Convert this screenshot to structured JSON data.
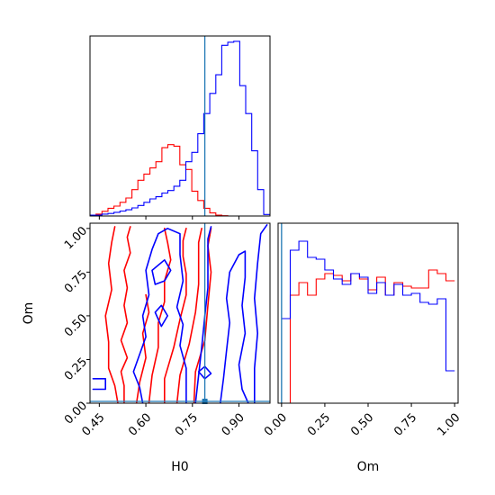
{
  "colors": {
    "series_a": "#ff0000",
    "series_b": "#0000ff",
    "truth": "#1f77b4"
  },
  "chart_data": {
    "type": "corner",
    "parameters": [
      "H0",
      "Om"
    ],
    "truth": {
      "H0": 0.79,
      "Om": 0.0
    },
    "panels": [
      {
        "id": "hist-H0",
        "type": "histogram",
        "param": "H0",
        "xlim": [
          0.42,
          1.0
        ],
        "series": [
          {
            "color": "#ff0000",
            "bin_start": 0.42,
            "bin_width": 0.0193,
            "values": [
              0,
              0.6,
              1.5,
              2.5,
              3.2,
              4.4,
              5.8,
              8.5,
              11.5,
              13.5,
              15.5,
              17.5,
              22.0,
              23.0,
              22.5,
              16.5,
              15.0,
              8.0,
              5.0,
              2.5,
              1.0,
              0.3,
              0.1,
              0,
              0,
              0,
              0,
              0,
              0,
              0
            ]
          },
          {
            "color": "#0000ff",
            "bin_start": 0.42,
            "bin_width": 0.0193,
            "values": [
              0.3,
              0.3,
              0.6,
              0.8,
              1.2,
              1.6,
              2.0,
              2.6,
              3.4,
              4.4,
              5.5,
              6.2,
              7.4,
              8.2,
              9.6,
              11.5,
              17.5,
              20.5,
              26.5,
              33.0,
              39.5,
              45.5,
              55.0,
              56.0,
              56.3,
              42.0,
              33.0,
              21.0,
              8.5,
              0.5
            ]
          }
        ]
      },
      {
        "id": "hist-Om",
        "type": "histogram",
        "param": "Om",
        "xlim": [
          -0.02,
          1.02
        ],
        "series": [
          {
            "color": "#ff0000",
            "bin_start": 0.0,
            "bin_width": 0.05,
            "values": [
              0,
              0.6,
              0.67,
              0.6,
              0.69,
              0.72,
              0.71,
              0.68,
              0.72,
              0.69,
              0.63,
              0.7,
              0.6,
              0.67,
              0.65,
              0.64,
              0.64,
              0.74,
              0.72,
              0.68
            ]
          },
          {
            "color": "#0000ff",
            "bin_start": 0.0,
            "bin_width": 0.05,
            "values": [
              0.47,
              0.85,
              0.9,
              0.81,
              0.8,
              0.74,
              0.69,
              0.66,
              0.72,
              0.7,
              0.61,
              0.67,
              0.6,
              0.66,
              0.6,
              0.61,
              0.56,
              0.55,
              0.58,
              0.18
            ]
          }
        ]
      },
      {
        "id": "contour-H0-Om",
        "type": "contour",
        "x": "H0",
        "y": "Om",
        "xlim": [
          0.42,
          1.0
        ],
        "ylim": [
          0.0,
          1.03
        ],
        "series": [
          {
            "color": "#ff0000",
            "contours": [
              [
                [
                  0.51,
                  0.0
                ],
                [
                  0.5,
                  0.1
                ],
                [
                  0.48,
                  0.2
                ],
                [
                  0.48,
                  0.35
                ],
                [
                  0.47,
                  0.5
                ],
                [
                  0.49,
                  0.65
                ],
                [
                  0.48,
                  0.8
                ],
                [
                  0.49,
                  0.92
                ],
                [
                  0.5,
                  1.01
                ]
              ],
              [
                [
                  0.53,
                  0.0
                ],
                [
                  0.53,
                  0.1
                ],
                [
                  0.52,
                  0.18
                ],
                [
                  0.54,
                  0.26
                ],
                [
                  0.52,
                  0.36
                ],
                [
                  0.54,
                  0.46
                ],
                [
                  0.53,
                  0.56
                ],
                [
                  0.54,
                  0.66
                ],
                [
                  0.53,
                  0.76
                ],
                [
                  0.55,
                  0.86
                ],
                [
                  0.54,
                  0.95
                ],
                [
                  0.55,
                  1.01
                ]
              ],
              [
                [
                  0.57,
                  0.0
                ],
                [
                  0.58,
                  0.12
                ],
                [
                  0.6,
                  0.26
                ],
                [
                  0.59,
                  0.4
                ],
                [
                  0.61,
                  0.52
                ],
                [
                  0.6,
                  0.62
                ]
              ],
              [
                [
                  0.61,
                  0.0
                ],
                [
                  0.62,
                  0.16
                ],
                [
                  0.64,
                  0.32
                ],
                [
                  0.64,
                  0.46
                ],
                [
                  0.66,
                  0.58
                ],
                [
                  0.66,
                  0.7
                ],
                [
                  0.68,
                  0.82
                ],
                [
                  0.67,
                  0.92
                ],
                [
                  0.66,
                  1.0
                ]
              ],
              [
                [
                  0.66,
                  0.0
                ],
                [
                  0.66,
                  0.14
                ],
                [
                  0.69,
                  0.32
                ],
                [
                  0.71,
                  0.48
                ],
                [
                  0.73,
                  0.62
                ],
                [
                  0.73,
                  0.74
                ],
                [
                  0.72,
                  0.84
                ],
                [
                  0.72,
                  0.93
                ],
                [
                  0.73,
                  1.0
                ]
              ],
              [
                [
                  0.7,
                  0.0
                ],
                [
                  0.71,
                  0.16
                ],
                [
                  0.74,
                  0.34
                ],
                [
                  0.76,
                  0.52
                ],
                [
                  0.77,
                  0.68
                ],
                [
                  0.77,
                  0.82
                ],
                [
                  0.77,
                  0.92
                ],
                [
                  0.78,
                  1.0
                ]
              ],
              [
                [
                  0.755,
                  0.0
                ],
                [
                  0.76,
                  0.18
                ],
                [
                  0.79,
                  0.36
                ],
                [
                  0.8,
                  0.56
                ],
                [
                  0.81,
                  0.75
                ],
                [
                  0.8,
                  0.9
                ],
                [
                  0.81,
                  1.0
                ]
              ]
            ]
          },
          {
            "color": "#0000ff",
            "contours": [
              [
                [
                  0.43,
                  0.14
                ],
                [
                  0.47,
                  0.14
                ],
                [
                  0.47,
                  0.08
                ],
                [
                  0.43,
                  0.08
                ]
              ],
              [
                [
                  0.59,
                  0.0
                ],
                [
                  0.58,
                  0.09
                ],
                [
                  0.56,
                  0.18
                ],
                [
                  0.58,
                  0.28
                ],
                [
                  0.6,
                  0.38
                ],
                [
                  0.59,
                  0.5
                ],
                [
                  0.61,
                  0.62
                ],
                [
                  0.6,
                  0.76
                ],
                [
                  0.62,
                  0.88
                ],
                [
                  0.64,
                  0.97
                ],
                [
                  0.67,
                  1.0
                ],
                [
                  0.71,
                  0.97
                ],
                [
                  0.71,
                  0.85
                ],
                [
                  0.72,
                  0.7
                ],
                [
                  0.7,
                  0.55
                ],
                [
                  0.72,
                  0.45
                ],
                [
                  0.71,
                  0.33
                ],
                [
                  0.73,
                  0.2
                ],
                [
                  0.73,
                  0.0
                ]
              ],
              [
                [
                  0.62,
                  0.76
                ],
                [
                  0.66,
                  0.82
                ],
                [
                  0.68,
                  0.76
                ],
                [
                  0.66,
                  0.7
                ],
                [
                  0.63,
                  0.68
                ],
                [
                  0.62,
                  0.76
                ]
              ],
              [
                [
                  0.63,
                  0.52
                ],
                [
                  0.65,
                  0.56
                ],
                [
                  0.67,
                  0.5
                ],
                [
                  0.65,
                  0.44
                ],
                [
                  0.63,
                  0.52
                ]
              ],
              [
                [
                  0.76,
                  0.0
                ],
                [
                  0.77,
                  0.16
                ],
                [
                  0.78,
                  0.32
                ],
                [
                  0.79,
                  0.5
                ],
                [
                  0.8,
                  0.66
                ],
                [
                  0.8,
                  0.82
                ],
                [
                  0.8,
                  0.94
                ],
                [
                  0.81,
                  1.01
                ]
              ],
              [
                [
                  0.77,
                  0.18
                ],
                [
                  0.79,
                  0.21
                ],
                [
                  0.81,
                  0.17
                ],
                [
                  0.79,
                  0.14
                ],
                [
                  0.77,
                  0.18
                ]
              ],
              [
                [
                  0.84,
                  0.0
                ],
                [
                  0.85,
                  0.14
                ],
                [
                  0.86,
                  0.3
                ],
                [
                  0.87,
                  0.46
                ],
                [
                  0.86,
                  0.6
                ],
                [
                  0.87,
                  0.75
                ],
                [
                  0.9,
                  0.85
                ],
                [
                  0.92,
                  0.87
                ],
                [
                  0.92,
                  0.72
                ],
                [
                  0.91,
                  0.56
                ],
                [
                  0.92,
                  0.4
                ],
                [
                  0.9,
                  0.22
                ],
                [
                  0.91,
                  0.08
                ],
                [
                  0.93,
                  0.0
                ]
              ],
              [
                [
                  0.95,
                  0.0
                ],
                [
                  0.95,
                  0.2
                ],
                [
                  0.96,
                  0.4
                ],
                [
                  0.95,
                  0.6
                ],
                [
                  0.96,
                  0.8
                ],
                [
                  0.97,
                  0.97
                ],
                [
                  0.99,
                  1.02
                ]
              ]
            ]
          }
        ]
      }
    ],
    "axes": {
      "H0": {
        "label": "H0",
        "ticks": [
          0.45,
          0.6,
          0.75,
          0.9
        ],
        "tick_labels": [
          "0.45",
          "0.60",
          "0.75",
          "0.90"
        ]
      },
      "Om": {
        "label": "Om",
        "ticks": [
          0.0,
          0.25,
          0.5,
          0.75,
          1.0
        ],
        "tick_labels": [
          "0.00",
          "0.25",
          "0.50",
          "0.75",
          "1.00"
        ]
      }
    }
  }
}
